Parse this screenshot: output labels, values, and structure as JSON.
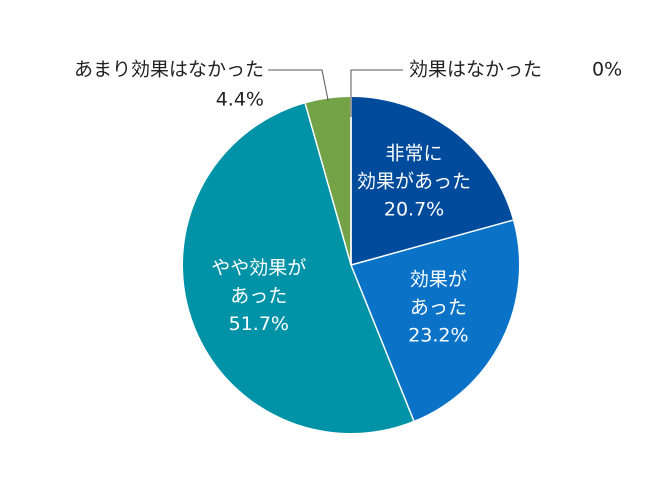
{
  "chart_data": {
    "type": "pie",
    "start": "12 o'clock",
    "direction": "clockwise",
    "slices": [
      {
        "name": "非常に効果があった",
        "value": 20.7,
        "color": "#004b9b",
        "label_lines": [
          "非常に",
          "効果があった"
        ],
        "value_label": "20.7%",
        "label_position": "inside"
      },
      {
        "name": "効果があった",
        "value": 23.2,
        "color": "#0a73c8",
        "label_lines": [
          "効果が",
          "あった"
        ],
        "value_label": "23.2%",
        "label_position": "inside"
      },
      {
        "name": "やや効果があった",
        "value": 51.7,
        "color": "#0093a7",
        "label_lines": [
          "やや効果が",
          "あった"
        ],
        "value_label": "51.7%",
        "label_position": "inside"
      },
      {
        "name": "あまり効果はなかった",
        "value": 4.4,
        "color": "#73a346",
        "label_lines": [
          "あまり効果はなかった"
        ],
        "value_label": "4.4%",
        "label_position": "outside-left"
      },
      {
        "name": "効果はなかった",
        "value": 0,
        "color": "#9e9e9e",
        "label_lines": [
          "効果はなかった"
        ],
        "value_label": "0%",
        "label_position": "outside-right"
      }
    ]
  }
}
